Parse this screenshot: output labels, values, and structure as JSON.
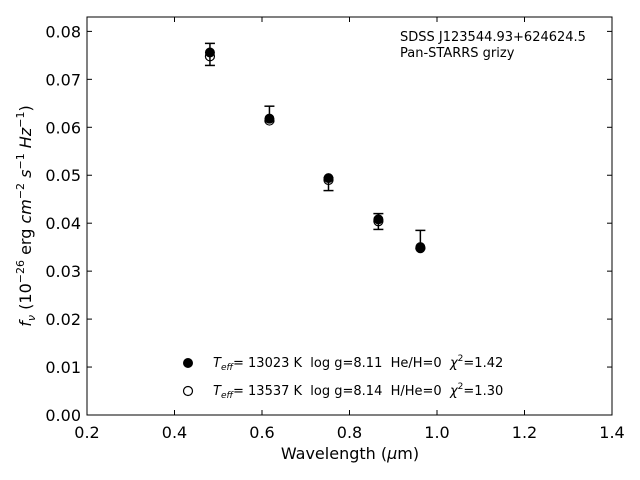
{
  "chart_data": {
    "type": "scatter",
    "xlabel": "Wavelength (μm)",
    "ylabel": "f_ν (10^-26 erg cm^-2 s^-1 Hz^-1)",
    "xlim": [
      0.2,
      1.4
    ],
    "ylim": [
      0.0,
      0.083
    ],
    "x_ticks": [
      "0.2",
      "0.4",
      "0.6",
      "0.8",
      "1.0",
      "1.2",
      "1.4"
    ],
    "y_ticks": [
      "0.00",
      "0.01",
      "0.02",
      "0.03",
      "0.04",
      "0.05",
      "0.06",
      "0.07",
      "0.08"
    ],
    "grid": false,
    "annotation": {
      "line1": "SDSS J123544.93+624624.5",
      "line2": "Pan-STARRS grizy"
    },
    "observed": {
      "x": [
        0.481,
        0.617,
        0.752,
        0.866,
        0.962
      ],
      "y": [
        0.0752,
        0.0628,
        0.049,
        0.0404,
        0.0362
      ],
      "yerr_low": [
        0.0023,
        0.0016,
        0.0022,
        0.0017,
        0.0015
      ],
      "yerr_high": [
        0.0023,
        0.0016,
        0.0005,
        0.0016,
        0.0023
      ]
    },
    "series": [
      {
        "name": "T_eff= 13023 K  log g=8.11  He/H=0  χ2=1.42",
        "marker": "filled-circle",
        "x": [
          0.481,
          0.617,
          0.752,
          0.866,
          0.962
        ],
        "y": [
          0.0756,
          0.0618,
          0.0494,
          0.0408,
          0.035
        ]
      },
      {
        "name": "T_eff= 13537 K  log g=8.14  H/He=0  χ2=1.30",
        "marker": "open-circle",
        "x": [
          0.481,
          0.617,
          0.752,
          0.866,
          0.962
        ],
        "y": [
          0.0748,
          0.0614,
          0.049,
          0.0404,
          0.0348
        ]
      }
    ],
    "legend": {
      "position": "lower-center",
      "entries": [
        {
          "teff_label": "T",
          "teff_sub": "eff",
          "text": "= 13023 K  log g=8.11  He/H=0  ",
          "chi_label": "χ",
          "chi_sup": "2",
          "chi_val": "=1.42"
        },
        {
          "teff_label": "T",
          "teff_sub": "eff",
          "text": "= 13537 K  log g=8.14  H/He=0  ",
          "chi_label": "χ",
          "chi_sup": "2",
          "chi_val": "=1.30"
        }
      ]
    }
  }
}
